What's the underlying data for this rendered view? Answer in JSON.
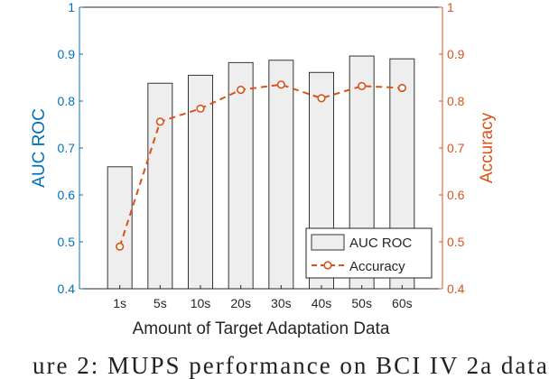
{
  "caption": "ure 2:  MUPS  performance  on  BCI IV 2a  data",
  "colors": {
    "left_axis": "#0072bd",
    "right_axis": "#d95319",
    "bar_fill": "#eeeeee",
    "bar_edge": "#333333"
  },
  "chart_data": {
    "type": "bar",
    "xlabel": "Amount of Target Adaptation Data",
    "categories": [
      "1s",
      "5s",
      "10s",
      "20s",
      "30s",
      "40s",
      "50s",
      "60s"
    ],
    "series": [
      {
        "name": "AUC ROC",
        "type": "bar",
        "axis": "left",
        "values": [
          0.66,
          0.838,
          0.855,
          0.882,
          0.887,
          0.861,
          0.896,
          0.89
        ]
      },
      {
        "name": "Accuracy",
        "type": "line",
        "axis": "right",
        "style": "dashed",
        "marker": "circle",
        "values": [
          0.49,
          0.756,
          0.784,
          0.824,
          0.835,
          0.806,
          0.832,
          0.828
        ]
      }
    ],
    "y_left": {
      "label": "AUC ROC",
      "range": [
        0.4,
        1
      ],
      "ticks": [
        "0.4",
        "0.5",
        "0.6",
        "0.7",
        "0.8",
        "0.9",
        "1"
      ]
    },
    "y_right": {
      "label": "Accuracy",
      "range": [
        0.4,
        1
      ],
      "ticks": [
        "0.4",
        "0.5",
        "0.6",
        "0.7",
        "0.8",
        "0.9",
        "1"
      ]
    },
    "legend": {
      "position": "bottom-right",
      "entries": [
        "AUC ROC",
        "Accuracy"
      ]
    },
    "grid": false
  }
}
